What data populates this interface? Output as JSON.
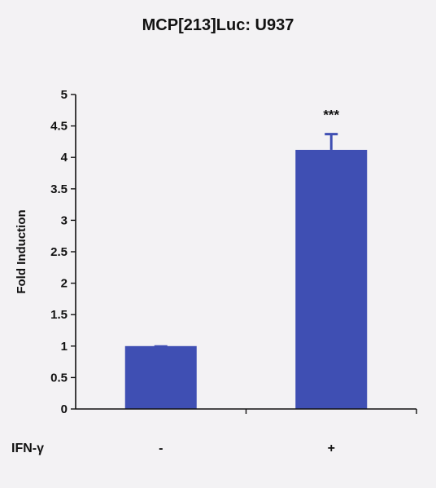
{
  "chart_data": {
    "type": "bar",
    "title": "MCP[213]Luc:  U937",
    "ylabel": "Fold Induction",
    "xlabel": "",
    "row_label": "IFN-γ",
    "categories": [
      "-",
      "+"
    ],
    "values": [
      1.0,
      4.12
    ],
    "errors": [
      0.0,
      0.25
    ],
    "annotations": [
      "",
      "***"
    ],
    "yticks": [
      "0",
      "0.5",
      "1",
      "1.5",
      "2",
      "2.5",
      "3",
      "3.5",
      "4",
      "4.5",
      "5"
    ],
    "ylim": [
      0,
      5
    ],
    "grid": false,
    "bar_color": "#3f4fb3",
    "error_color": "#3f4fb3"
  }
}
